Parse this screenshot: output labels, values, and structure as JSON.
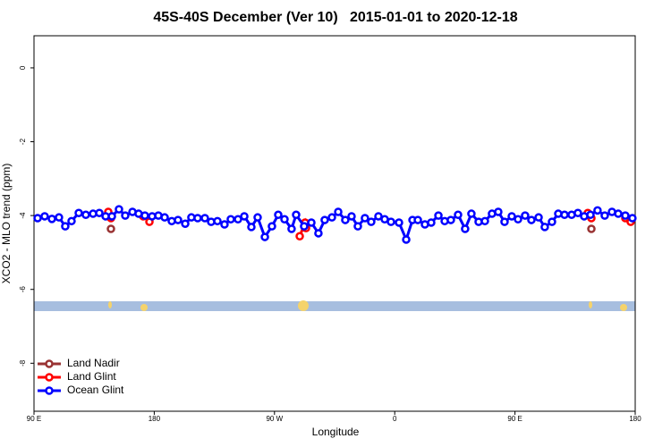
{
  "chart_data": {
    "type": "line",
    "title": "45S-40S December (Ver 10)   2015-01-01 to 2020-12-18",
    "x_label": "Longitude",
    "y_label": "XCO2 - MLO trend (ppm)",
    "xlim": [
      90,
      540
    ],
    "ylim": [
      -9.3,
      0.87
    ],
    "xticks": [
      {
        "value": 90,
        "label": "90 E"
      },
      {
        "value": 180,
        "label": "180"
      },
      {
        "value": 270,
        "label": "90 W"
      },
      {
        "value": 360,
        "label": "0"
      },
      {
        "value": 450,
        "label": "90 E"
      },
      {
        "value": 540,
        "label": "180"
      }
    ],
    "yticks": [
      0,
      -2,
      -4,
      -6,
      -8
    ],
    "legend": "bottom-left",
    "series": [
      {
        "name": "Land Nadir",
        "color": "#993333",
        "x": [
          147.6,
          null,
          507.2
        ],
        "values": [
          -4.36,
          null,
          -4.36
        ]
      },
      {
        "name": "Land Glint",
        "color": "#ff0000",
        "x": [
          145.6,
          147.6,
          null,
          171.7,
          176.4,
          null,
          288.9,
          292.9,
          293.6,
          null,
          504.5,
          507.2,
          null,
          532.6,
          536.6
        ],
        "values": [
          -3.9,
          -4.07,
          null,
          -4.02,
          -4.17,
          null,
          -4.56,
          -4.19,
          -4.34,
          null,
          -3.93,
          -4.07,
          null,
          -4.07,
          -4.17
        ]
      },
      {
        "name": "Ocean Glint",
        "color": "#0000ff",
        "x": [
          92.7,
          98.0,
          103.4,
          108.7,
          113.4,
          118.1,
          123.5,
          128.8,
          134.2,
          138.9,
          143.6,
          148.3,
          153.6,
          158.3,
          163.7,
          168.3,
          173.0,
          178.4,
          183.1,
          187.8,
          193.1,
          197.8,
          203.2,
          207.8,
          212.5,
          217.9,
          222.6,
          227.3,
          232.6,
          237.3,
          242.7,
          247.4,
          252.7,
          257.4,
          262.8,
          268.1,
          272.8,
          277.5,
          282.8,
          286.2,
          292.2,
          297.6,
          302.9,
          307.6,
          313.0,
          317.7,
          323.0,
          327.7,
          332.4,
          337.7,
          342.4,
          347.8,
          352.5,
          357.2,
          363.2,
          368.6,
          373.3,
          377.3,
          382.6,
          387.3,
          392.7,
          397.4,
          402.0,
          407.4,
          412.7,
          417.4,
          422.8,
          427.5,
          432.8,
          437.5,
          442.2,
          447.6,
          452.3,
          457.6,
          462.3,
          467.7,
          472.3,
          477.7,
          482.4,
          487.1,
          492.4,
          497.1,
          501.8,
          506.5,
          511.8,
          517.2,
          522.6,
          527.3,
          532.6,
          537.9
        ],
        "values": [
          -4.07,
          -4.02,
          -4.09,
          -4.05,
          -4.29,
          -4.15,
          -3.93,
          -3.98,
          -3.95,
          -3.93,
          -4.02,
          -4.02,
          -3.83,
          -4.0,
          -3.9,
          -3.95,
          -4.0,
          -4.02,
          -4.0,
          -4.05,
          -4.15,
          -4.12,
          -4.22,
          -4.05,
          -4.07,
          -4.07,
          -4.17,
          -4.15,
          -4.24,
          -4.1,
          -4.1,
          -4.02,
          -4.31,
          -4.05,
          -4.58,
          -4.29,
          -3.98,
          -4.1,
          -4.36,
          -3.98,
          -4.29,
          -4.19,
          -4.48,
          -4.12,
          -4.05,
          -3.9,
          -4.12,
          -4.02,
          -4.29,
          -4.07,
          -4.17,
          -4.02,
          -4.1,
          -4.17,
          -4.19,
          -4.65,
          -4.12,
          -4.12,
          -4.24,
          -4.19,
          -4.0,
          -4.15,
          -4.12,
          -3.98,
          -4.36,
          -3.95,
          -4.17,
          -4.15,
          -3.95,
          -3.9,
          -4.17,
          -4.02,
          -4.1,
          -4.0,
          -4.12,
          -4.05,
          -4.31,
          -4.17,
          -3.95,
          -3.98,
          -3.98,
          -3.93,
          -4.02,
          -3.98,
          -3.86,
          -4.0,
          -3.9,
          -3.95,
          -4.0,
          -4.07
        ]
      }
    ]
  }
}
